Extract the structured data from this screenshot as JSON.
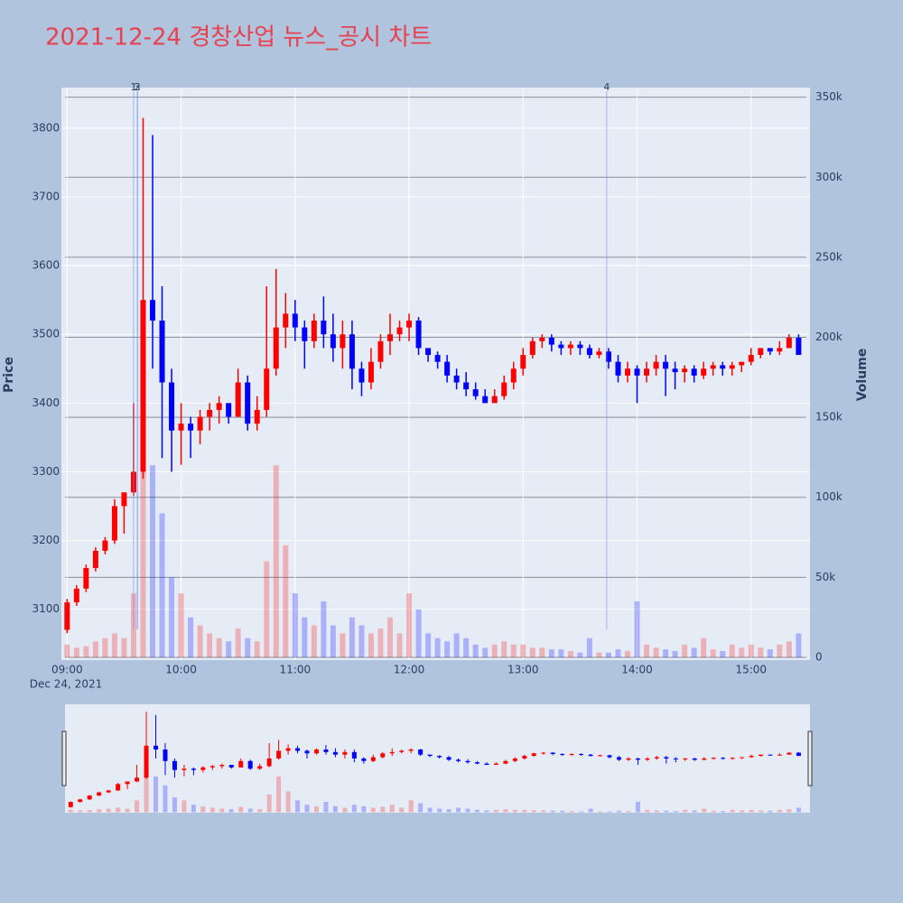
{
  "chart_data": {
    "type": "candlestick",
    "title": "2021-12-24 경창산업 뉴스_공시 차트",
    "y_label": "Price",
    "y2_label": "Volume",
    "x_date_label": "Dec 24, 2021",
    "increasing_color": "#ff0000",
    "decreasing_color": "#0000ff",
    "x": [
      "09:00",
      "09:05",
      "09:10",
      "09:15",
      "09:20",
      "09:25",
      "09:30",
      "09:35",
      "09:40",
      "09:45",
      "09:50",
      "09:55",
      "10:00",
      "10:05",
      "10:10",
      "10:15",
      "10:20",
      "10:25",
      "10:30",
      "10:35",
      "10:40",
      "10:45",
      "10:50",
      "10:55",
      "11:00",
      "11:05",
      "11:10",
      "11:15",
      "11:20",
      "11:25",
      "11:30",
      "11:35",
      "11:40",
      "11:45",
      "11:50",
      "11:55",
      "12:00",
      "12:05",
      "12:10",
      "12:15",
      "12:20",
      "12:25",
      "12:30",
      "12:35",
      "12:40",
      "12:45",
      "12:50",
      "12:55",
      "13:00",
      "13:05",
      "13:10",
      "13:15",
      "13:20",
      "13:25",
      "13:30",
      "13:35",
      "13:40",
      "13:45",
      "13:50",
      "13:55",
      "14:00",
      "14:05",
      "14:10",
      "14:15",
      "14:20",
      "14:25",
      "14:30",
      "14:35",
      "14:40",
      "14:45",
      "14:50",
      "14:55",
      "15:00",
      "15:05",
      "15:10",
      "15:15",
      "15:20",
      "15:25"
    ],
    "open": [
      3070,
      3110,
      3130,
      3160,
      3185,
      3200,
      3250,
      3270,
      3300,
      3550,
      3520,
      3430,
      3360,
      3370,
      3360,
      3380,
      3390,
      3400,
      3380,
      3430,
      3370,
      3390,
      3450,
      3510,
      3530,
      3510,
      3490,
      3520,
      3500,
      3480,
      3500,
      3450,
      3430,
      3460,
      3490,
      3500,
      3510,
      3520,
      3480,
      3470,
      3460,
      3440,
      3430,
      3420,
      3410,
      3400,
      3410,
      3430,
      3450,
      3470,
      3490,
      3495,
      3485,
      3480,
      3485,
      3480,
      3470,
      3475,
      3460,
      3440,
      3450,
      3440,
      3450,
      3460,
      3450,
      3445,
      3450,
      3440,
      3450,
      3455,
      3450,
      3455,
      3460,
      3470,
      3480,
      3475,
      3480,
      3495
    ],
    "high": [
      3115,
      3135,
      3165,
      3190,
      3205,
      3260,
      3270,
      3400,
      3815,
      3790,
      3570,
      3450,
      3400,
      3380,
      3390,
      3400,
      3410,
      3400,
      3450,
      3440,
      3410,
      3570,
      3595,
      3560,
      3550,
      3520,
      3530,
      3555,
      3530,
      3520,
      3520,
      3460,
      3480,
      3500,
      3530,
      3520,
      3530,
      3525,
      3480,
      3475,
      3470,
      3450,
      3445,
      3430,
      3420,
      3420,
      3440,
      3460,
      3480,
      3495,
      3500,
      3500,
      3490,
      3490,
      3490,
      3485,
      3480,
      3480,
      3470,
      3460,
      3455,
      3460,
      3470,
      3470,
      3460,
      3455,
      3455,
      3460,
      3460,
      3460,
      3460,
      3460,
      3480,
      3480,
      3480,
      3490,
      3500,
      3500
    ],
    "low": [
      3065,
      3105,
      3125,
      3155,
      3180,
      3195,
      3210,
      3265,
      3290,
      3450,
      3320,
      3300,
      3310,
      3320,
      3340,
      3360,
      3370,
      3370,
      3380,
      3360,
      3360,
      3380,
      3440,
      3480,
      3490,
      3450,
      3480,
      3480,
      3460,
      3450,
      3420,
      3410,
      3420,
      3450,
      3470,
      3490,
      3490,
      3470,
      3460,
      3450,
      3430,
      3420,
      3410,
      3405,
      3400,
      3400,
      3405,
      3420,
      3440,
      3465,
      3480,
      3475,
      3470,
      3470,
      3470,
      3465,
      3465,
      3450,
      3430,
      3430,
      3400,
      3430,
      3440,
      3410,
      3420,
      3430,
      3430,
      3435,
      3440,
      3440,
      3440,
      3445,
      3455,
      3465,
      3470,
      3470,
      3480,
      3470
    ],
    "close": [
      3110,
      3130,
      3160,
      3185,
      3200,
      3250,
      3270,
      3300,
      3550,
      3520,
      3430,
      3360,
      3370,
      3360,
      3380,
      3390,
      3400,
      3380,
      3430,
      3370,
      3390,
      3450,
      3510,
      3530,
      3510,
      3490,
      3520,
      3500,
      3480,
      3500,
      3450,
      3430,
      3460,
      3490,
      3500,
      3510,
      3520,
      3480,
      3470,
      3460,
      3440,
      3430,
      3420,
      3410,
      3400,
      3410,
      3430,
      3450,
      3470,
      3490,
      3495,
      3485,
      3480,
      3485,
      3480,
      3470,
      3475,
      3460,
      3440,
      3450,
      3440,
      3450,
      3460,
      3450,
      3445,
      3450,
      3440,
      3450,
      3455,
      3450,
      3455,
      3460,
      3470,
      3480,
      3475,
      3480,
      3495,
      3470
    ],
    "volume": [
      8000,
      6000,
      7000,
      10000,
      12000,
      15000,
      12000,
      40000,
      150000,
      120000,
      90000,
      50000,
      40000,
      25000,
      20000,
      15000,
      12000,
      10000,
      18000,
      12000,
      10000,
      60000,
      120000,
      70000,
      40000,
      25000,
      20000,
      35000,
      20000,
      15000,
      25000,
      20000,
      15000,
      18000,
      25000,
      15000,
      40000,
      30000,
      15000,
      12000,
      10000,
      15000,
      12000,
      8000,
      6000,
      8000,
      10000,
      8000,
      8000,
      6000,
      6000,
      5000,
      5000,
      4000,
      3000,
      12000,
      3000,
      3000,
      5000,
      4000,
      35000,
      8000,
      6000,
      5000,
      4000,
      8000,
      6000,
      12000,
      5000,
      4000,
      8000,
      6000,
      8000,
      6000,
      5000,
      8000,
      10000,
      15000
    ],
    "xlim": [
      "08:57",
      "15:31"
    ],
    "xticks": [
      "09:00",
      "10:00",
      "11:00",
      "12:00",
      "13:00",
      "14:00",
      "15:00"
    ],
    "ylim": [
      3026,
      3859
    ],
    "yticks": [
      3100,
      3200,
      3300,
      3400,
      3500,
      3600,
      3700,
      3800
    ],
    "y2lim": [
      -1700,
      356000
    ],
    "y2ticks": [
      {
        "value": 0,
        "label": "0"
      },
      {
        "value": 50000,
        "label": "50k"
      },
      {
        "value": 100000,
        "label": "100k"
      },
      {
        "value": 150000,
        "label": "150k"
      },
      {
        "value": 200000,
        "label": "200k"
      },
      {
        "value": 250000,
        "label": "250k"
      },
      {
        "value": 300000,
        "label": "300k"
      },
      {
        "value": 350000,
        "label": "350k"
      }
    ],
    "annotations": [
      {
        "label": "1",
        "x": "09:35"
      },
      {
        "label": "2",
        "x": "09:37"
      },
      {
        "label": "3",
        "x": "09:37"
      },
      {
        "label": "4",
        "x": "13:44"
      }
    ],
    "grid": true,
    "rangeslider": true
  }
}
